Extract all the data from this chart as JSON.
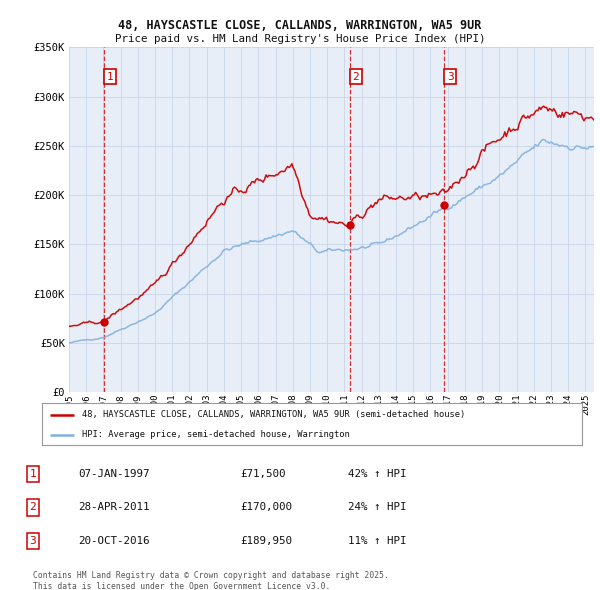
{
  "title_line1": "48, HAYSCASTLE CLOSE, CALLANDS, WARRINGTON, WA5 9UR",
  "title_line2": "Price paid vs. HM Land Registry's House Price Index (HPI)",
  "ylim": [
    0,
    350000
  ],
  "yticks": [
    0,
    50000,
    100000,
    150000,
    200000,
    250000,
    300000,
    350000
  ],
  "ytick_labels": [
    "£0",
    "£50K",
    "£100K",
    "£150K",
    "£200K",
    "£250K",
    "£300K",
    "£350K"
  ],
  "sales": [
    {
      "date_num": 1997.05,
      "price": 71500,
      "label": "1"
    },
    {
      "date_num": 2011.32,
      "price": 170000,
      "label": "2"
    },
    {
      "date_num": 2016.8,
      "price": 189950,
      "label": "3"
    }
  ],
  "sale_color": "#cc0000",
  "hpi_color": "#80b0e0",
  "vline_color": "#cc0000",
  "background_color": "#ffffff",
  "plot_bg_color": "#e8eef8",
  "grid_color": "#c8d4e8",
  "legend_label_red": "48, HAYSCASTLE CLOSE, CALLANDS, WARRINGTON, WA5 9UR (semi-detached house)",
  "legend_label_blue": "HPI: Average price, semi-detached house, Warrington",
  "table_rows": [
    [
      "1",
      "07-JAN-1997",
      "£71,500",
      "42% ↑ HPI"
    ],
    [
      "2",
      "28-APR-2011",
      "£170,000",
      "24% ↑ HPI"
    ],
    [
      "3",
      "20-OCT-2016",
      "£189,950",
      "11% ↑ HPI"
    ]
  ],
  "footnote": "Contains HM Land Registry data © Crown copyright and database right 2025.\nThis data is licensed under the Open Government Licence v3.0.",
  "xstart": 1995.0,
  "xend": 2025.5
}
